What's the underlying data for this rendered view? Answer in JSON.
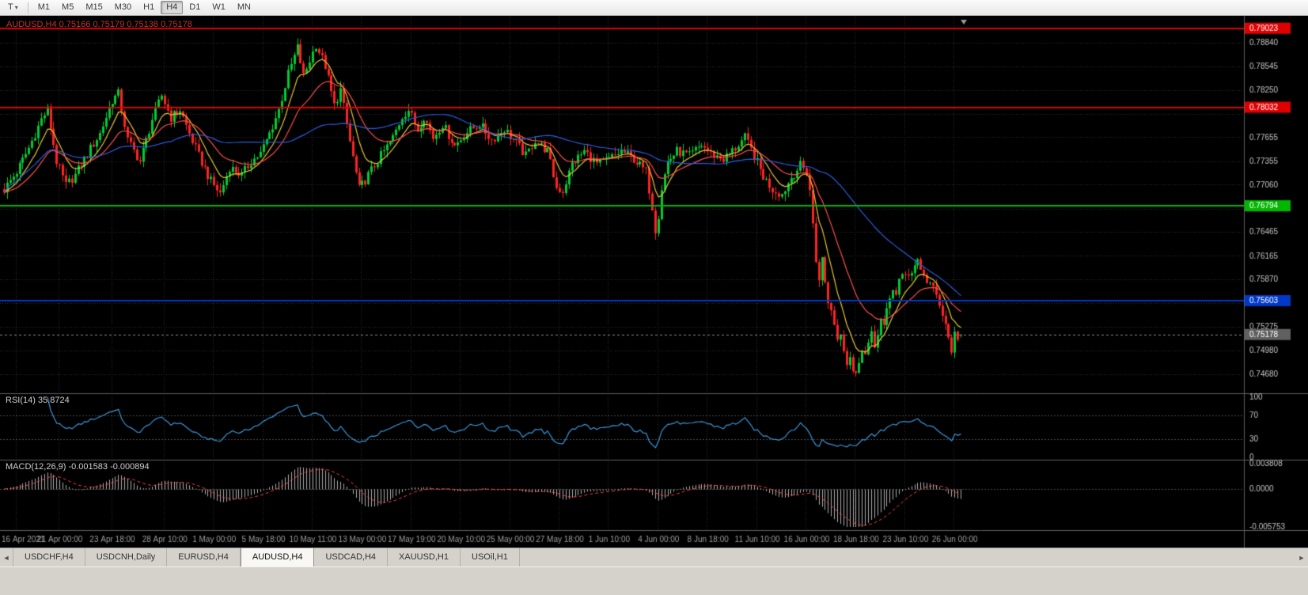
{
  "toolbar": {
    "tool_button": "T",
    "dropdown_icon": "▾",
    "timeframes": [
      "M1",
      "M5",
      "M15",
      "M30",
      "H1",
      "H4",
      "D1",
      "W1",
      "MN"
    ],
    "active": "H4"
  },
  "chart": {
    "title": "AUDUSD,H4 0.75166 0.75179 0.75138 0.75178",
    "rsi_label": "RSI(14) 35.8724",
    "macd_label": "MACD(12,26,9) -0.001583 -0.000894"
  },
  "tabs": {
    "items": [
      "USDCHF,H4",
      "USDCNH,Daily",
      "EURUSD,H4",
      "AUDUSD,H4",
      "USDCAD,H4",
      "XAUUSD,H1",
      "USOil,H1"
    ],
    "active": "AUDUSD,H4",
    "scroll_left_icon": "◄",
    "scroll_right_icon": "►"
  },
  "chart_data": {
    "type": "candlestick",
    "symbol": "AUDUSD",
    "timeframe": "H4",
    "current": {
      "open": 0.75166,
      "high": 0.75179,
      "low": 0.75138,
      "close": 0.75178
    },
    "colors": {
      "bg": "#000000",
      "grid": "#303030",
      "up": "#00cc33",
      "down": "#ff2222",
      "ma_fast": "#e6c832",
      "ma_mid": "#ff4d4d",
      "ma_slow": "#2b5ce0",
      "rsi": "#3d96d9",
      "macd_hist": "#adadad",
      "macd_signal": "#ff4040",
      "axis_text": "#c4c4c4",
      "time_text": "#9c9c9c",
      "separator": "#5f5f5f",
      "last_badge": "#606060",
      "title": "#c03434"
    },
    "price_axis": {
      "min": 0.7449,
      "max": 0.7912,
      "gridlines": [
        0.7884,
        0.78545,
        0.7825,
        0.7795,
        0.77655,
        0.77355,
        0.7706,
        0.7676,
        0.76465,
        0.76165,
        0.7587,
        0.7557,
        0.75275,
        0.7498,
        0.7468
      ]
    },
    "hlines": [
      {
        "price": 0.79023,
        "label": "0.79023",
        "color": "#e00000",
        "width": 2
      },
      {
        "price": 0.78032,
        "label": "0.78032",
        "color": "#e00000",
        "width": 2
      },
      {
        "price": 0.76794,
        "label": "0.76794",
        "color": "#00b800",
        "width": 2
      },
      {
        "price": 0.75603,
        "label": "0.75603",
        "color": "#0038c8",
        "width": 2
      }
    ],
    "last_price": {
      "value": 0.75178,
      "label": "0.75178"
    },
    "moving_averages": [
      {
        "type": "ema",
        "period": 8,
        "color": "#e6c832"
      },
      {
        "type": "ema",
        "period": 21,
        "color": "#ff4d4d"
      },
      {
        "type": "sma",
        "period": 55,
        "color": "#2b5ce0"
      }
    ],
    "rsi": {
      "period": 14,
      "levels": [
        100,
        70,
        30,
        0
      ],
      "label_value": 35.8724
    },
    "macd": {
      "fast": 12,
      "slow": 26,
      "signal": 9,
      "axis_max": 0.003808,
      "axis_min": -0.005753,
      "axis_labels": [
        "0.003808",
        "0.0000",
        "-0.005753"
      ]
    },
    "bars": {
      "count": 311,
      "spacing": 3.9,
      "width": 3,
      "noise_amp": 0.0006,
      "wick_amp": 0.0009,
      "keyframes": [
        [
          0,
          0.77
        ],
        [
          4,
          0.7722
        ],
        [
          8,
          0.7752
        ],
        [
          12,
          0.7788
        ],
        [
          14,
          0.78
        ],
        [
          17,
          0.7735
        ],
        [
          20,
          0.7705
        ],
        [
          23,
          0.7718
        ],
        [
          27,
          0.7745
        ],
        [
          31,
          0.777
        ],
        [
          35,
          0.7812
        ],
        [
          37,
          0.782
        ],
        [
          40,
          0.7762
        ],
        [
          44,
          0.7735
        ],
        [
          48,
          0.7788
        ],
        [
          51,
          0.7818
        ],
        [
          54,
          0.779
        ],
        [
          57,
          0.78
        ],
        [
          60,
          0.777
        ],
        [
          63,
          0.7742
        ],
        [
          67,
          0.771
        ],
        [
          70,
          0.7695
        ],
        [
          73,
          0.7728
        ],
        [
          77,
          0.7718
        ],
        [
          80,
          0.7735
        ],
        [
          83,
          0.7745
        ],
        [
          86,
          0.777
        ],
        [
          89,
          0.78
        ],
        [
          92,
          0.7845
        ],
        [
          95,
          0.7878
        ],
        [
          97,
          0.7842
        ],
        [
          99,
          0.7862
        ],
        [
          101,
          0.7882
        ],
        [
          104,
          0.7855
        ],
        [
          107,
          0.7805
        ],
        [
          109,
          0.7825
        ],
        [
          112,
          0.776
        ],
        [
          115,
          0.77
        ],
        [
          117,
          0.7712
        ],
        [
          120,
          0.773
        ],
        [
          123,
          0.7748
        ],
        [
          126,
          0.7765
        ],
        [
          129,
          0.7792
        ],
        [
          131,
          0.78
        ],
        [
          134,
          0.7775
        ],
        [
          136,
          0.7792
        ],
        [
          139,
          0.7765
        ],
        [
          142,
          0.7782
        ],
        [
          146,
          0.7755
        ],
        [
          150,
          0.7772
        ],
        [
          154,
          0.7782
        ],
        [
          158,
          0.7762
        ],
        [
          162,
          0.7776
        ],
        [
          166,
          0.7758
        ],
        [
          169,
          0.7742
        ],
        [
          172,
          0.7762
        ],
        [
          176,
          0.7748
        ],
        [
          179,
          0.7702
        ],
        [
          181,
          0.7698
        ],
        [
          184,
          0.7732
        ],
        [
          188,
          0.7748
        ],
        [
          192,
          0.7732
        ],
        [
          196,
          0.7738
        ],
        [
          200,
          0.7748
        ],
        [
          204,
          0.7738
        ],
        [
          208,
          0.7722
        ],
        [
          210,
          0.7678
        ],
        [
          211,
          0.765
        ],
        [
          212,
          0.7668
        ],
        [
          213,
          0.7702
        ],
        [
          215,
          0.7735
        ],
        [
          218,
          0.7748
        ],
        [
          222,
          0.7742
        ],
        [
          226,
          0.7756
        ],
        [
          229,
          0.7745
        ],
        [
          233,
          0.7738
        ],
        [
          237,
          0.7752
        ],
        [
          240,
          0.7765
        ],
        [
          243,
          0.7742
        ],
        [
          246,
          0.7716
        ],
        [
          249,
          0.77
        ],
        [
          252,
          0.7694
        ],
        [
          255,
          0.7715
        ],
        [
          258,
          0.773
        ],
        [
          260,
          0.7722
        ],
        [
          261,
          0.77
        ],
        [
          262,
          0.7655
        ],
        [
          263,
          0.761
        ],
        [
          264,
          0.759
        ],
        [
          265,
          0.7612
        ],
        [
          266,
          0.7582
        ],
        [
          267,
          0.756
        ],
        [
          268,
          0.7548
        ],
        [
          269,
          0.7532
        ],
        [
          270,
          0.7512
        ],
        [
          271,
          0.7522
        ],
        [
          272,
          0.7502
        ],
        [
          273,
          0.7482
        ],
        [
          274,
          0.7492
        ],
        [
          275,
          0.7472
        ],
        [
          276,
          0.7466
        ],
        [
          277,
          0.7486
        ],
        [
          278,
          0.7502
        ],
        [
          279,
          0.7492
        ],
        [
          280,
          0.7506
        ],
        [
          281,
          0.7516
        ],
        [
          282,
          0.7502
        ],
        [
          283,
          0.7522
        ],
        [
          284,
          0.7536
        ],
        [
          285,
          0.7526
        ],
        [
          286,
          0.7546
        ],
        [
          287,
          0.7562
        ],
        [
          288,
          0.7576
        ],
        [
          289,
          0.757
        ],
        [
          290,
          0.7586
        ],
        [
          292,
          0.7592
        ],
        [
          294,
          0.7598
        ],
        [
          296,
          0.7612
        ],
        [
          297,
          0.7602
        ],
        [
          298,
          0.759
        ],
        [
          300,
          0.7582
        ],
        [
          302,
          0.7565
        ],
        [
          304,
          0.7542
        ],
        [
          306,
          0.7512
        ],
        [
          307,
          0.75
        ],
        [
          308,
          0.7516
        ],
        [
          309,
          0.7506
        ],
        [
          310,
          0.75178
        ]
      ]
    },
    "time_axis": [
      {
        "bar": 4,
        "label": "16 Apr 2021"
      },
      {
        "bar": 18,
        "label": "21 Apr 00:00"
      },
      {
        "bar": 35,
        "label": "23 Apr 18:00"
      },
      {
        "bar": 52,
        "label": "28 Apr 10:00"
      },
      {
        "bar": 68,
        "label": "1 May 00:00"
      },
      {
        "bar": 84,
        "label": "5 May 18:00"
      },
      {
        "bar": 100,
        "label": "10 May 11:00"
      },
      {
        "bar": 116,
        "label": "13 May 00:00"
      },
      {
        "bar": 132,
        "label": "17 May 19:00"
      },
      {
        "bar": 148,
        "label": "20 May 10:00"
      },
      {
        "bar": 164,
        "label": "25 May 00:00"
      },
      {
        "bar": 180,
        "label": "27 May 18:00"
      },
      {
        "bar": 196,
        "label": "1 Jun 10:00"
      },
      {
        "bar": 212,
        "label": "4 Jun 00:00"
      },
      {
        "bar": 228,
        "label": "8 Jun 18:00"
      },
      {
        "bar": 244,
        "label": "11 Jun 10:00"
      },
      {
        "bar": 260,
        "label": "16 Jun 00:00"
      },
      {
        "bar": 276,
        "label": "18 Jun 18:00"
      },
      {
        "bar": 292,
        "label": "23 Jun 10:00"
      },
      {
        "bar": 308,
        "label": "26 Jun 00:00"
      }
    ]
  }
}
